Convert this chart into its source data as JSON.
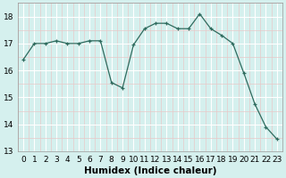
{
  "x": [
    0,
    1,
    2,
    3,
    4,
    5,
    6,
    7,
    8,
    9,
    10,
    11,
    12,
    13,
    14,
    15,
    16,
    17,
    18,
    19,
    20,
    21,
    22,
    23
  ],
  "y": [
    16.4,
    17.0,
    17.0,
    17.1,
    17.0,
    17.0,
    17.1,
    17.1,
    15.55,
    15.35,
    16.95,
    17.55,
    17.75,
    17.75,
    17.55,
    17.55,
    18.1,
    17.55,
    17.3,
    17.0,
    15.9,
    14.75,
    13.9,
    13.45
  ],
  "xlabel": "Humidex (Indice chaleur)",
  "ylim": [
    13,
    18.5
  ],
  "xlim": [
    -0.5,
    23.5
  ],
  "yticks": [
    13,
    14,
    15,
    16,
    17,
    18
  ],
  "xticks": [
    0,
    1,
    2,
    3,
    4,
    5,
    6,
    7,
    8,
    9,
    10,
    11,
    12,
    13,
    14,
    15,
    16,
    17,
    18,
    19,
    20,
    21,
    22,
    23
  ],
  "line_color": "#2e6b5e",
  "marker": "+",
  "bg_color": "#d5f0ee",
  "major_grid_color": "#ffffff",
  "minor_grid_color": "#e8c8c8",
  "spine_color": "#999999",
  "tick_label_fontsize": 6.5,
  "xlabel_fontsize": 7.5,
  "xlabel_bold": true
}
